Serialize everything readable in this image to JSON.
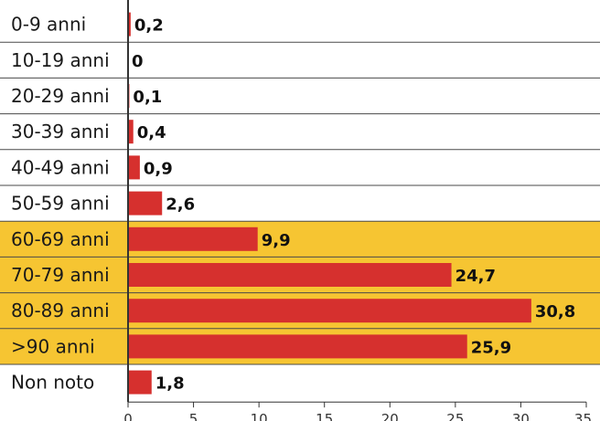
{
  "chart_data": {
    "type": "bar",
    "orientation": "horizontal",
    "title": "",
    "xlabel": "",
    "ylabel": "",
    "categories": [
      "0-9 anni",
      "10-19 anni",
      "20-29 anni",
      "30-39 anni",
      "40-49 anni",
      "50-59 anni",
      "60-69 anni",
      "70-79 anni",
      "80-89 anni",
      ">90 anni",
      "Non noto"
    ],
    "values": [
      0.2,
      0,
      0.1,
      0.4,
      0.9,
      2.6,
      9.9,
      24.7,
      30.8,
      25.9,
      1.8
    ],
    "value_labels": [
      "0,2",
      "0",
      "0,1",
      "0,4",
      "0,9",
      "2,6",
      "9,9",
      "24,7",
      "30,8",
      "25,9",
      "1,8"
    ],
    "highlighted_categories": [
      "60-69 anni",
      "70-79 anni",
      "80-89 anni",
      ">90 anni"
    ],
    "xlim": [
      0,
      35
    ],
    "xticks": [
      0,
      5,
      10,
      15,
      20,
      25,
      30,
      35
    ],
    "xtick_labels": [
      "0",
      "5",
      "10",
      "15",
      "20",
      "25",
      "30",
      "35"
    ],
    "grid": false,
    "legend": "none",
    "colors": {
      "bar": "#d6302e",
      "highlight_band": "#f6c532",
      "row_divider": "#4a4a4a",
      "axis": "#333333"
    }
  }
}
